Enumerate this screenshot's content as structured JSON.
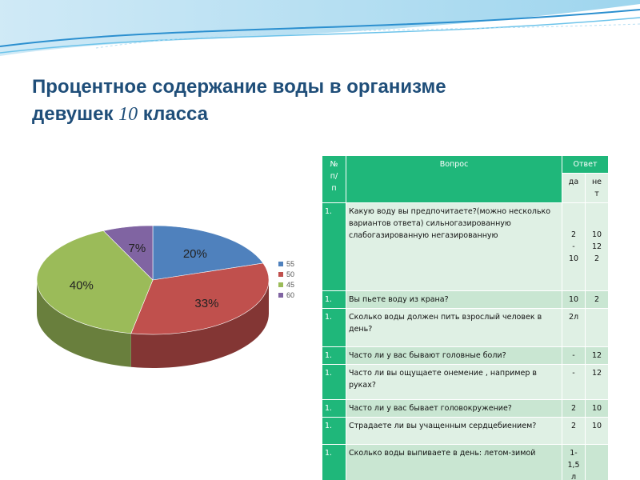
{
  "title": {
    "line1": "Процентное содержание воды в организме",
    "line2_text": "девушек",
    "line2_num": "10",
    "line2_end": "класса"
  },
  "chart_data": {
    "type": "pie",
    "style": "3d",
    "categories": [
      "55",
      "50",
      "45",
      "60"
    ],
    "values": [
      20,
      33,
      40,
      7
    ],
    "labels": [
      "20%",
      "33%",
      "40%",
      "7%"
    ],
    "colors": [
      "#4f81bd",
      "#c0504d",
      "#9bbb59",
      "#8064a2"
    ],
    "legend_position": "right"
  },
  "table": {
    "header": {
      "num": [
        "№",
        "п/",
        "п"
      ],
      "question": "Вопрос",
      "answer": "Ответ",
      "yes": "да",
      "no": [
        "не",
        "т"
      ]
    },
    "rows": [
      {
        "num": "1.",
        "question": "Какую воду вы предпочитаете?(можно несколько вариантов ответа) сильногазированную слабогазированную негазированную",
        "yes": [
          "2",
          "-",
          "10"
        ],
        "no": [
          "10",
          "12",
          "2"
        ]
      },
      {
        "num": "1.",
        "question": "Вы пьете воду из крана?",
        "yes": [
          "10"
        ],
        "no": [
          "2"
        ]
      },
      {
        "num": "1.",
        "question": "Сколько воды должен пить взрослый человек в день?",
        "yes": [
          "2л"
        ],
        "no": [
          ""
        ]
      },
      {
        "num": "1.",
        "question": "Часто ли у вас бывают головные боли?",
        "yes": [
          "-"
        ],
        "no": [
          "12"
        ]
      },
      {
        "num": "1.",
        "question": "Часто ли вы ощущаете онемение , например в руках?",
        "yes": [
          "-"
        ],
        "no": [
          "12"
        ]
      },
      {
        "num": "1.",
        "question": "Часто ли у вас бывает головокружение?",
        "yes": [
          "2"
        ],
        "no": [
          "10"
        ]
      },
      {
        "num": "1.",
        "question": "Страдаете ли вы учащенным сердцебиением?",
        "yes": [
          "2"
        ],
        "no": [
          "10"
        ]
      },
      {
        "num": "1.",
        "question": "Сколько воды выпиваете в день: летом-зимой",
        "yes": [
          "1-",
          "1,5",
          "л"
        ],
        "no": [
          ""
        ]
      }
    ]
  }
}
